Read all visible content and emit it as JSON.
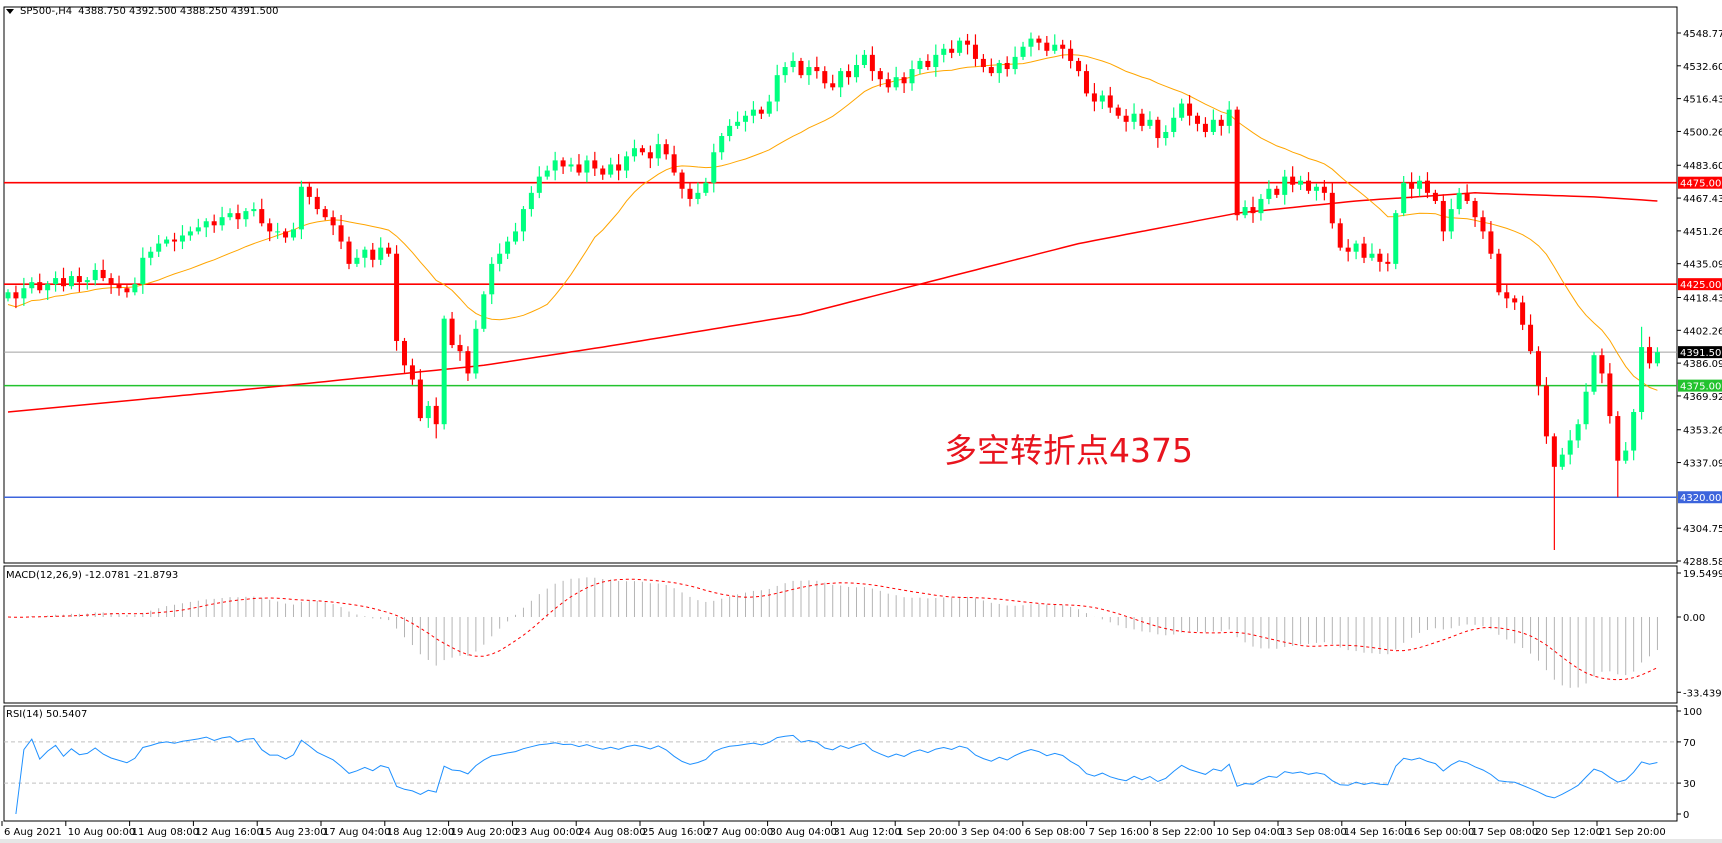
{
  "header": {
    "symbol": "SP500-,H4",
    "ohlc_text": "4388.750 4392.500 4388.250 4391.500"
  },
  "annotation": "多空转折点4375",
  "macd_label": "MACD(12,26,9) -12.0781 -21.8793",
  "rsi_label": "RSI(14) 50.5407",
  "colors": {
    "bull": "#00ff7f",
    "bear": "#ff0000",
    "ma_fast": "#ffa500",
    "ma_slow": "#ff0000",
    "resistance": "#ff0000",
    "support": "#22c32e",
    "low_line": "#3c64dc",
    "price_line": "#a0a0a0",
    "macd_hist": "#b4b4b4",
    "macd_signal": "#ff0000",
    "rsi": "#1e90ff"
  },
  "chart_data": {
    "type": "candlestick",
    "timeframe": "H4",
    "price": {
      "ylim": [
        4288.58,
        4548.77
      ],
      "y_ticks": [
        "4548.770",
        "4532.600",
        "4516.430",
        "4500.260",
        "4483.600",
        "4467.430",
        "4451.260",
        "4435.090",
        "4418.430",
        "4402.260",
        "4386.090",
        "4369.920",
        "4353.260",
        "4337.090",
        "4304.750",
        "4288.580"
      ],
      "close": [
        4421,
        4418,
        4423,
        4426,
        4422,
        4425,
        4428,
        4424,
        4429,
        4426,
        4427,
        4432,
        4428,
        4425,
        4423,
        4421,
        4425,
        4438,
        4441,
        4445,
        4447,
        4446,
        4449,
        4451,
        4453,
        4456,
        4454,
        4458,
        4460,
        4457,
        4461,
        4462,
        4455,
        4451,
        4451,
        4448,
        4452,
        4473,
        4468,
        4462,
        4458,
        4454,
        4446,
        4435,
        4438,
        4442,
        4437,
        4443,
        4440,
        4397,
        4385,
        4378,
        4359,
        4365,
        4356,
        4408,
        4395,
        4392,
        4381,
        4403,
        4420,
        4435,
        4440,
        4446,
        4451,
        4462,
        4470,
        4478,
        4481,
        4486,
        4483,
        4484,
        4480,
        4486,
        4482,
        4479,
        4484,
        4481,
        4488,
        4492,
        4490,
        4487,
        4494,
        4489,
        4480,
        4472,
        4467,
        4470,
        4475,
        4490,
        4498,
        4503,
        4505,
        4508,
        4511,
        4509,
        4515,
        4528,
        4532,
        4535,
        4528,
        4532,
        4530,
        4524,
        4522,
        4530,
        4527,
        4533,
        4538,
        4530,
        4526,
        4522,
        4527,
        4524,
        4531,
        4535,
        4532,
        4538,
        4541,
        4539,
        4545,
        4543,
        4536,
        4532,
        4529,
        4534,
        4531,
        4537,
        4542,
        4546,
        4544,
        4540,
        4543,
        4541,
        4535,
        4530,
        4519,
        4515,
        4518,
        4512,
        4508,
        4505,
        4509,
        4503,
        4506,
        4497,
        4500,
        4507,
        4514,
        4508,
        4504,
        4500,
        4506,
        4503,
        4511,
        4459,
        4463,
        4460,
        4467,
        4472,
        4469,
        4478,
        4474,
        4476,
        4471,
        4473,
        4470,
        4455,
        4443,
        4441,
        4445,
        4438,
        4440,
        4436,
        4435,
        4460,
        4475,
        4472,
        4476,
        4470,
        4466,
        4451,
        4462,
        4470,
        4466,
        4458,
        4451,
        4440,
        4421,
        4418,
        4416,
        4405,
        4392,
        4375,
        4350,
        4335,
        4341,
        4348,
        4356,
        4372,
        4390,
        4381,
        4360,
        4338,
        4343,
        4362,
        4394,
        4386,
        4391.5
      ],
      "extremes": [
        {
          "i": 37,
          "high": 4476
        },
        {
          "i": 54,
          "low": 4349
        },
        {
          "i": 129,
          "high": 4549
        },
        {
          "i": 195,
          "low": 4294
        },
        {
          "i": 203,
          "low": 4320
        },
        {
          "i": 206,
          "high": 4404
        }
      ],
      "ma_fast_period": 20,
      "ma_slow_points": [
        [
          0,
          4362
        ],
        [
          35,
          4375
        ],
        [
          60,
          4385
        ],
        [
          75,
          4394
        ],
        [
          100,
          4410
        ],
        [
          115,
          4425
        ],
        [
          135,
          4445
        ],
        [
          155,
          4460
        ],
        [
          170,
          4466
        ],
        [
          185,
          4470
        ],
        [
          200,
          4468
        ],
        [
          208,
          4466
        ]
      ],
      "levels": [
        {
          "value": 4475,
          "label": "4475.000",
          "kind": "resistance"
        },
        {
          "value": 4425,
          "label": "4425.000",
          "kind": "resistance"
        },
        {
          "value": 4391.5,
          "label": "4391.500",
          "kind": "price_line"
        },
        {
          "value": 4375,
          "label": "4375.000",
          "kind": "support"
        },
        {
          "value": 4320,
          "label": "4320.000",
          "kind": "low_line"
        }
      ]
    },
    "macd": {
      "params": [
        12,
        26,
        9
      ],
      "ylim": [
        -33.4394,
        19.5499
      ],
      "y_ticks": [
        "19.5499",
        "0.00",
        "-33.4394"
      ]
    },
    "rsi": {
      "period": 14,
      "ylim": [
        0,
        100
      ],
      "y_ticks": [
        "100",
        "70",
        "30",
        "0"
      ],
      "levels": [
        30,
        70
      ]
    },
    "x_ticks": [
      "6 Aug 2021",
      "10 Aug 00:00",
      "11 Aug 08:00",
      "12 Aug 16:00",
      "15 Aug 23:00",
      "17 Aug 04:00",
      "18 Aug 12:00",
      "19 Aug 20:00",
      "23 Aug 00:00",
      "24 Aug 08:00",
      "25 Aug 16:00",
      "27 Aug 00:00",
      "30 Aug 04:00",
      "31 Aug 12:00",
      "1 Sep 20:00",
      "3 Sep 04:00",
      "6 Sep 08:00",
      "7 Sep 16:00",
      "8 Sep 22:00",
      "10 Sep 04:00",
      "13 Sep 08:00",
      "14 Sep 16:00",
      "16 Sep 00:00",
      "17 Sep 08:00",
      "20 Sep 12:00",
      "21 Sep 20:00"
    ]
  }
}
